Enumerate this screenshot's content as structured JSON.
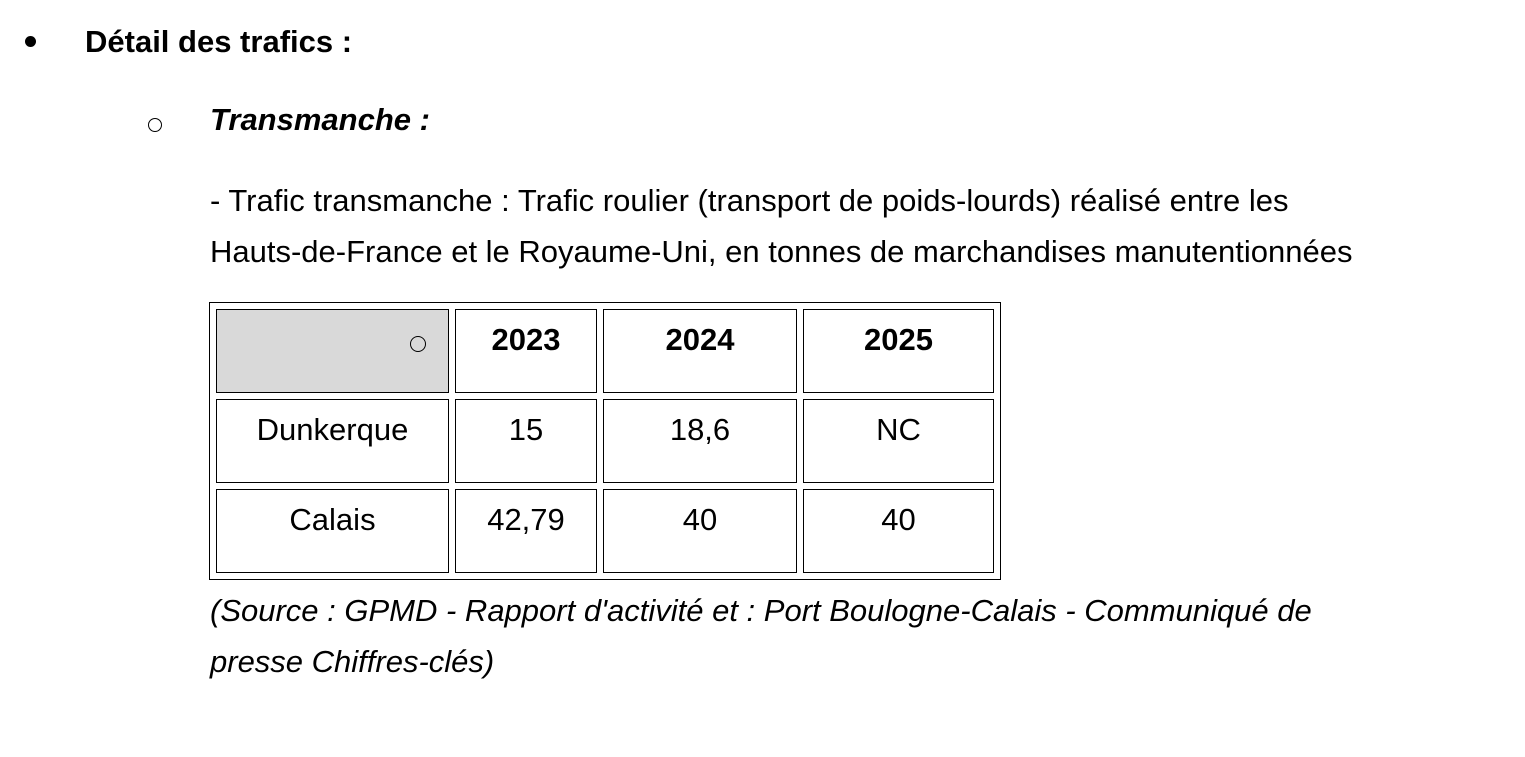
{
  "section": {
    "title": "Détail des trafics :",
    "subsection": {
      "title": "Transmanche :",
      "description_lines": [
        "- Trafic transmanche : Trafic roulier (transport de poids-lourds) réalisé entre les",
        "Hauts-de-France et le Royaume-Uni, en tonnes de marchandises manutentionnées"
      ],
      "table": {
        "columns": [
          "2023",
          "2024",
          "2025"
        ],
        "rows": [
          {
            "label": "Dunkerque",
            "values": [
              "15",
              "18,6",
              "NC"
            ]
          },
          {
            "label": "Calais",
            "values": [
              "42,79",
              "40",
              "40"
            ]
          }
        ]
      },
      "source_lines": [
        "(Source : GPMD - Rapport d'activité et : Port Boulogne-Calais - Communiqué de",
        "presse Chiffres-clés)"
      ]
    }
  }
}
